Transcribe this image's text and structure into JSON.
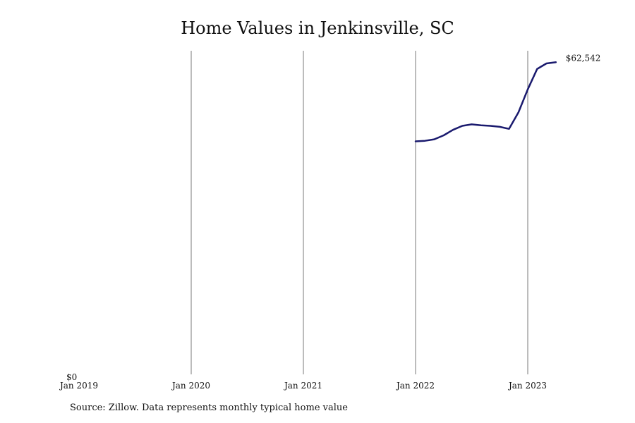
{
  "chart_data": {
    "type": "line",
    "title": "Home Values in Jenkinsville, SC",
    "xlabel": "",
    "ylabel": "",
    "x_ticks": [
      "Jan 2019",
      "Jan 2020",
      "Jan 2021",
      "Jan 2022",
      "Jan 2023"
    ],
    "y_ticks": [
      "$0"
    ],
    "ylim": [
      0,
      64000
    ],
    "xlim": [
      "2019-01",
      "2023-06"
    ],
    "grid": "vertical",
    "series": [
      {
        "color": "#1a1a6e",
        "points": [
          {
            "x": "2022-01",
            "y": 46700
          },
          {
            "x": "2022-02",
            "y": 46800
          },
          {
            "x": "2022-03",
            "y": 47100
          },
          {
            "x": "2022-04",
            "y": 47900
          },
          {
            "x": "2022-05",
            "y": 49000
          },
          {
            "x": "2022-06",
            "y": 49800
          },
          {
            "x": "2022-07",
            "y": 50100
          },
          {
            "x": "2022-08",
            "y": 49900
          },
          {
            "x": "2022-09",
            "y": 49800
          },
          {
            "x": "2022-10",
            "y": 49600
          },
          {
            "x": "2022-11",
            "y": 49200
          },
          {
            "x": "2022-12",
            "y": 52500
          },
          {
            "x": "2023-01",
            "y": 57100
          },
          {
            "x": "2023-02",
            "y": 61200
          },
          {
            "x": "2023-03",
            "y": 62300
          },
          {
            "x": "2023-04",
            "y": 62542
          }
        ]
      }
    ],
    "end_label": "$62,542"
  },
  "source_note": "Source: Zillow. Data represents monthly typical home value"
}
